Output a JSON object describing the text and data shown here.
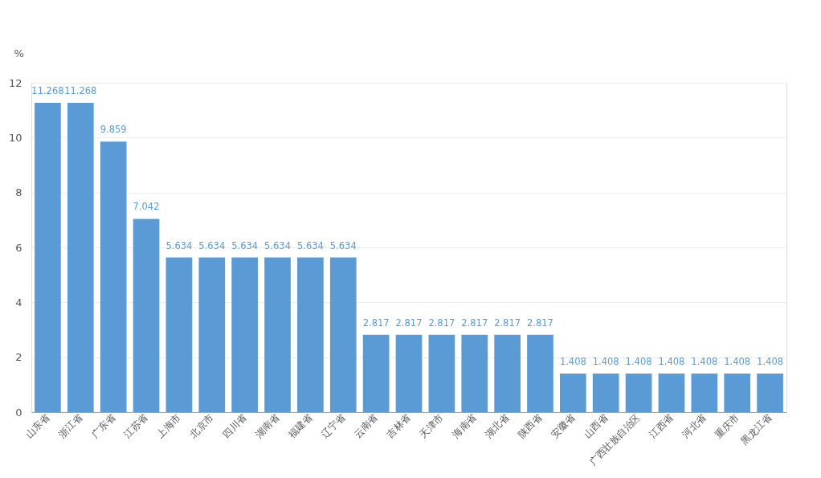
{
  "chart_data": {
    "type": "bar",
    "ylabel": "%",
    "categories": [
      "山东省",
      "浙江省",
      "广东省",
      "江苏省",
      "上海市",
      "北京市",
      "四川省",
      "湖南省",
      "福建省",
      "辽宁省",
      "云南省",
      "吉林省",
      "天津市",
      "海南省",
      "湖北省",
      "陕西省",
      "安徽省",
      "山西省",
      "广西壮族自治区",
      "江西省",
      "河北省",
      "重庆市",
      "黑龙江省"
    ],
    "values": [
      11.268,
      11.268,
      9.859,
      7.042,
      5.634,
      5.634,
      5.634,
      5.634,
      5.634,
      5.634,
      2.817,
      2.817,
      2.817,
      2.817,
      2.817,
      2.817,
      1.408,
      1.408,
      1.408,
      1.408,
      1.408,
      1.408,
      1.408
    ],
    "color": "#5b9bd5",
    "ylim": [
      0,
      12
    ],
    "yticks": [
      0,
      2,
      4,
      6,
      8,
      10,
      12
    ],
    "grid": "y",
    "data_labels": true
  }
}
